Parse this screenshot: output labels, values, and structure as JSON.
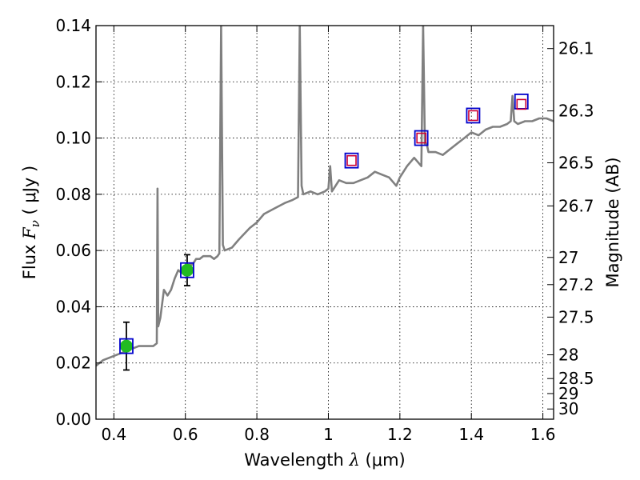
{
  "chart_data": {
    "type": "line",
    "xlabel_prefix": "Wavelength",
    "xlabel_symbol": "λ",
    "xlabel_unit": "(μm)",
    "ylabel_prefix": "Flux",
    "ylabel_symbol": "F",
    "ylabel_subscript": "ν",
    "ylabel_unit": "( μJy )",
    "y2label": "Magnitude (AB)",
    "xlim": [
      0.35,
      1.63
    ],
    "ylim": [
      0.0,
      0.14
    ],
    "grid": true,
    "x_ticks": [
      0.4,
      0.6,
      0.8,
      1.0,
      1.2,
      1.4,
      1.6
    ],
    "x_tick_labels": [
      "0.4",
      "0.6",
      "0.8",
      "1",
      "1.2",
      "1.4",
      "1.6"
    ],
    "y_ticks": [
      0.0,
      0.02,
      0.04,
      0.06,
      0.08,
      0.1,
      0.12,
      0.14
    ],
    "y_tick_labels": [
      "0.00",
      "0.02",
      "0.04",
      "0.06",
      "0.08",
      "0.10",
      "0.12",
      "0.14"
    ],
    "y2_ticks": [
      26.1,
      26.3,
      26.5,
      26.7,
      27,
      27.2,
      27.5,
      28,
      28.5,
      29,
      30
    ],
    "y2_tick_labels": [
      "26.1",
      "26.3",
      "26.5",
      "26.7",
      "27",
      "27.2",
      "27.5",
      "28",
      "28.5",
      "29",
      "30"
    ],
    "colors": {
      "spectrum": "#808080",
      "observed_fill": "#22bb22",
      "model_box": "#0000cc",
      "predicted_box": "#cc0033",
      "errorbar": "#000000"
    },
    "series": [
      {
        "kind": "spectrum",
        "x": [
          0.35,
          0.37,
          0.39,
          0.41,
          0.43,
          0.45,
          0.47,
          0.49,
          0.51,
          0.52,
          0.522,
          0.524,
          0.53,
          0.54,
          0.55,
          0.56,
          0.57,
          0.58,
          0.59,
          0.6,
          0.61,
          0.62,
          0.63,
          0.64,
          0.65,
          0.66,
          0.67,
          0.68,
          0.69,
          0.695,
          0.7,
          0.705,
          0.71,
          0.73,
          0.75,
          0.78,
          0.8,
          0.82,
          0.85,
          0.88,
          0.9,
          0.915,
          0.92,
          0.925,
          0.93,
          0.95,
          0.97,
          0.99,
          1.0,
          1.005,
          1.01,
          1.03,
          1.05,
          1.07,
          1.09,
          1.11,
          1.13,
          1.15,
          1.17,
          1.19,
          1.2,
          1.22,
          1.24,
          1.26,
          1.265,
          1.27,
          1.275,
          1.28,
          1.3,
          1.32,
          1.34,
          1.36,
          1.38,
          1.4,
          1.42,
          1.44,
          1.46,
          1.48,
          1.5,
          1.51,
          1.515,
          1.52,
          1.53,
          1.55,
          1.57,
          1.59,
          1.61,
          1.63
        ],
        "y": [
          0.019,
          0.021,
          0.022,
          0.023,
          0.024,
          0.025,
          0.026,
          0.026,
          0.026,
          0.027,
          0.082,
          0.033,
          0.036,
          0.046,
          0.044,
          0.046,
          0.05,
          0.053,
          0.052,
          0.052,
          0.055,
          0.055,
          0.057,
          0.057,
          0.058,
          0.058,
          0.058,
          0.057,
          0.058,
          0.059,
          0.14,
          0.062,
          0.06,
          0.061,
          0.064,
          0.068,
          0.07,
          0.073,
          0.075,
          0.077,
          0.078,
          0.079,
          0.14,
          0.083,
          0.08,
          0.081,
          0.08,
          0.081,
          0.082,
          0.09,
          0.081,
          0.085,
          0.084,
          0.084,
          0.085,
          0.086,
          0.088,
          0.087,
          0.086,
          0.083,
          0.086,
          0.09,
          0.093,
          0.09,
          0.14,
          0.098,
          0.098,
          0.095,
          0.095,
          0.094,
          0.096,
          0.098,
          0.1,
          0.102,
          0.101,
          0.103,
          0.104,
          0.104,
          0.105,
          0.106,
          0.115,
          0.106,
          0.105,
          0.106,
          0.106,
          0.107,
          0.107,
          0.106
        ]
      },
      {
        "kind": "observed",
        "name": "",
        "x": [
          0.435,
          0.605
        ],
        "y": [
          0.026,
          0.053
        ],
        "yerr": [
          0.0085,
          0.0055
        ]
      },
      {
        "kind": "model_boxes",
        "x": [
          0.435,
          0.605,
          1.065,
          1.26,
          1.405,
          1.54
        ],
        "y": [
          0.026,
          0.053,
          0.092,
          0.1,
          0.108,
          0.113
        ]
      },
      {
        "kind": "predicted_boxes",
        "x": [
          1.065,
          1.26,
          1.405,
          1.54
        ],
        "y": [
          0.092,
          0.1,
          0.108,
          0.112
        ]
      }
    ]
  }
}
